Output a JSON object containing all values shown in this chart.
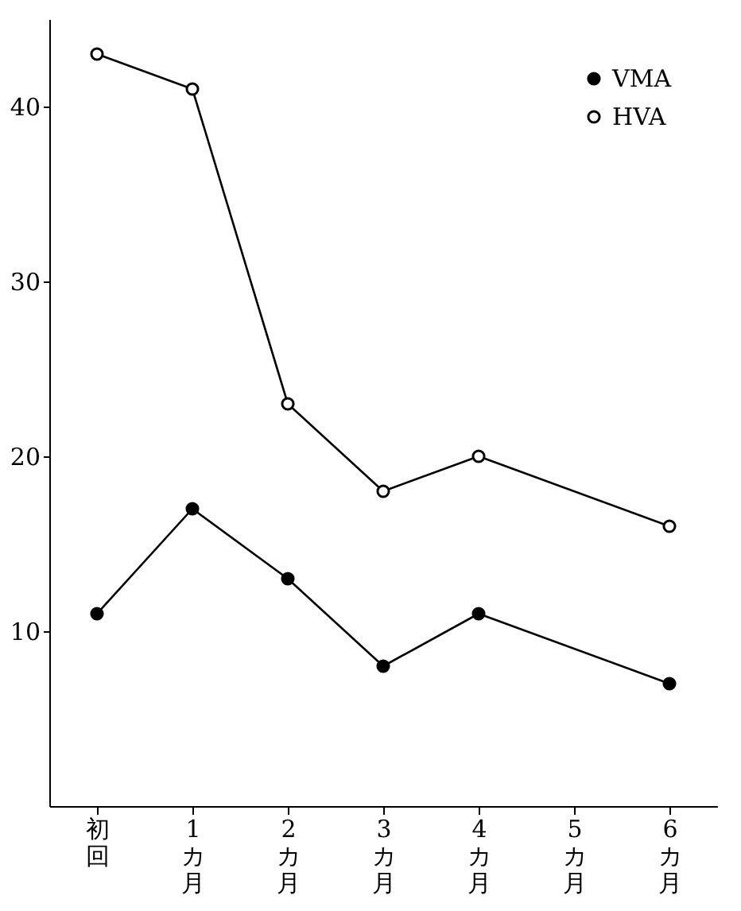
{
  "chart_data": {
    "type": "line",
    "categories": [
      "初回",
      "1カ月",
      "2カ月",
      "3カ月",
      "4カ月",
      "5カ月",
      "6カ月"
    ],
    "series": [
      {
        "name": "VMA",
        "color": "#000000",
        "values": [
          11,
          17,
          13,
          8,
          11,
          null,
          7
        ]
      },
      {
        "name": "HVA",
        "color": "#000000",
        "values": [
          43,
          41,
          23,
          18,
          20,
          null,
          16
        ]
      }
    ],
    "ylim": [
      0,
      45
    ],
    "yticks": [
      10,
      20,
      30,
      40
    ],
    "grid": false,
    "legend": "top right",
    "marker": "circle",
    "line_style": "solid"
  }
}
